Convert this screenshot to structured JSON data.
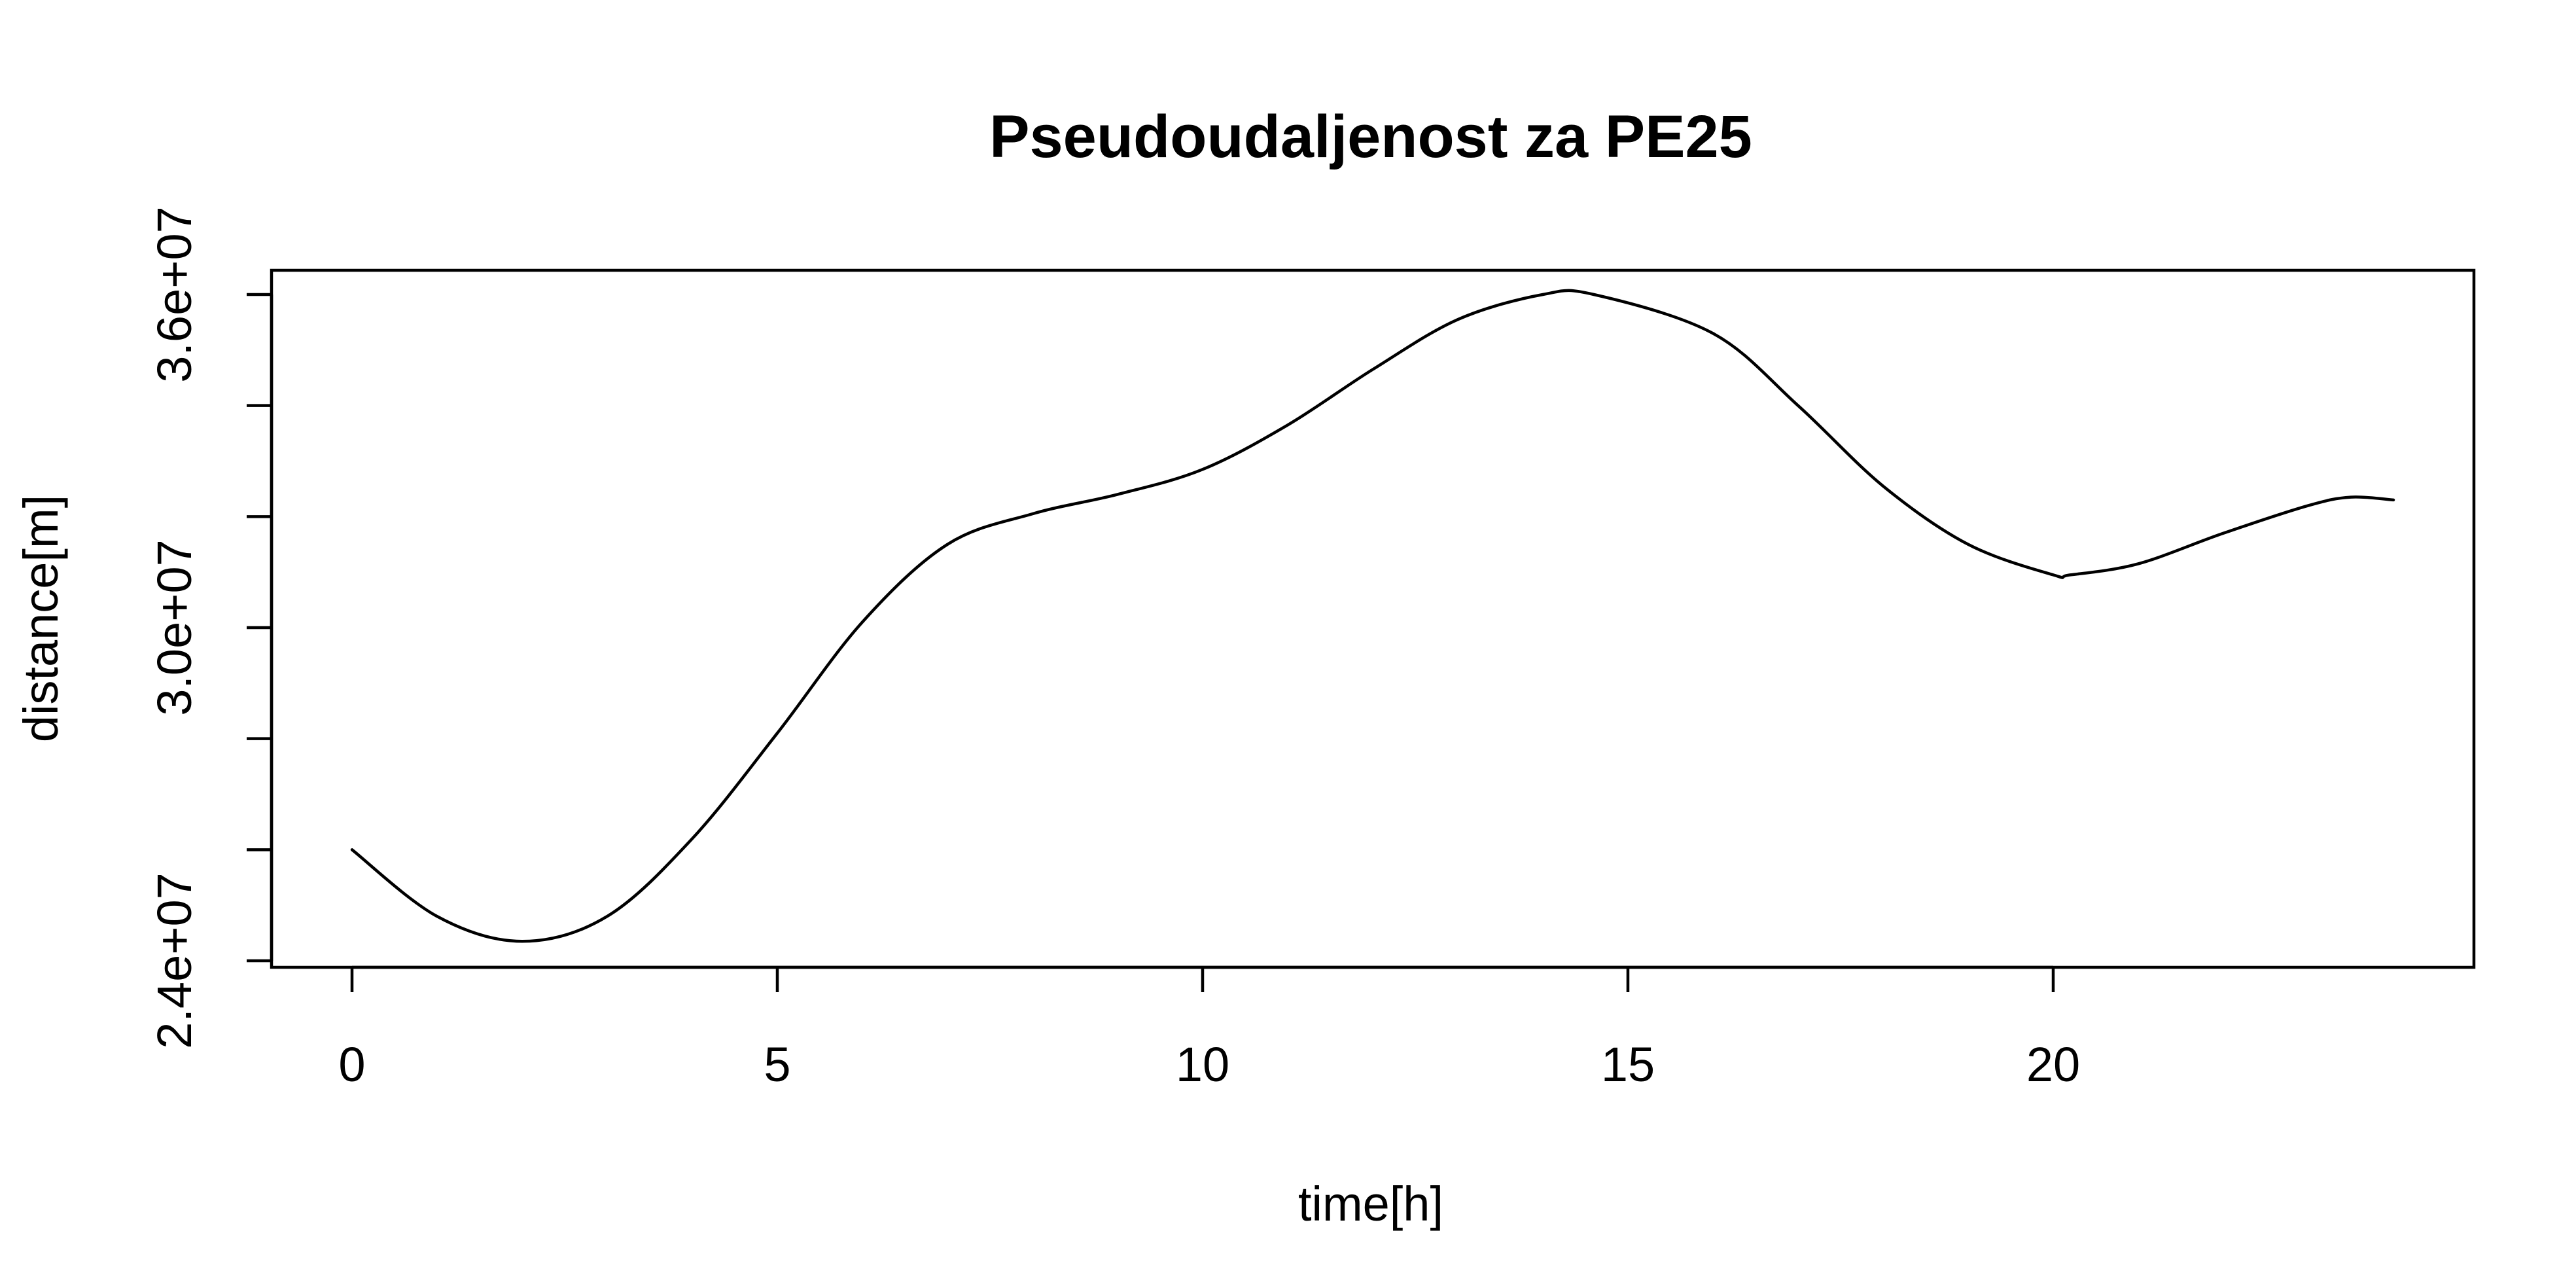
{
  "chart_data": {
    "type": "line",
    "title": "Pseudoudaljenost za PE25",
    "xlabel": "time[h]",
    "ylabel": "distance[m]",
    "xlim": [
      0,
      24
    ],
    "ylim": [
      24000000,
      36000000
    ],
    "grid": false,
    "legend": "none",
    "x_ticks": [
      {
        "value": 0,
        "label": "0"
      },
      {
        "value": 5,
        "label": "5"
      },
      {
        "value": 10,
        "label": "10"
      },
      {
        "value": 15,
        "label": "15"
      },
      {
        "value": 20,
        "label": "20"
      }
    ],
    "y_ticks": [
      {
        "value": 24000000,
        "label": "2.4e+07"
      },
      {
        "value": 26000000,
        "label": ""
      },
      {
        "value": 28000000,
        "label": ""
      },
      {
        "value": 30000000,
        "label": "3.0e+07"
      },
      {
        "value": 32000000,
        "label": ""
      },
      {
        "value": 34000000,
        "label": ""
      },
      {
        "value": 36000000,
        "label": "3.6e+07"
      }
    ],
    "series": [
      {
        "color": "#000000",
        "x": [
          0,
          1,
          2,
          3,
          4,
          5,
          6,
          7,
          8,
          9,
          10,
          11,
          12,
          13,
          14,
          14.6,
          16,
          17,
          18,
          19,
          20,
          20.2,
          21,
          22,
          23,
          23.5,
          24
        ],
        "y": [
          26000000,
          24800000,
          24350000,
          24800000,
          26200000,
          28100000,
          30100000,
          31500000,
          32050000,
          32400000,
          32850000,
          33650000,
          34650000,
          35550000,
          36000000,
          36000000,
          35300000,
          34000000,
          32550000,
          31500000,
          30950000,
          30950000,
          31150000,
          31700000,
          32200000,
          32350000,
          32300000
        ]
      }
    ]
  }
}
